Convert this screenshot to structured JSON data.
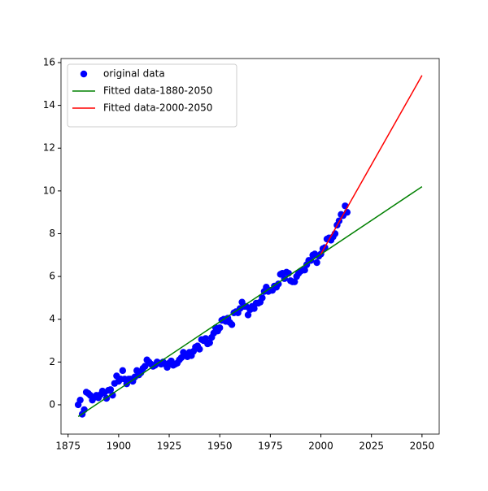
{
  "chart_data": {
    "type": "scatter",
    "legend": "upper left",
    "grid": false,
    "xlim": [
      1871.5,
      2058.5
    ],
    "ylim": [
      -1.37,
      16.19
    ],
    "xticks": [
      1875,
      1900,
      1925,
      1950,
      1975,
      2000,
      2025,
      2050
    ],
    "yticks": [
      0,
      2,
      4,
      6,
      8,
      10,
      12,
      14,
      16
    ],
    "series": [
      {
        "name": "original data",
        "type": "scatter",
        "color": "#0000ff",
        "x": [
          1880,
          1881,
          1882,
          1883,
          1884,
          1885,
          1886,
          1887,
          1888,
          1889,
          1890,
          1891,
          1892,
          1893,
          1894,
          1895,
          1896,
          1897,
          1898,
          1899,
          1900,
          1901,
          1902,
          1903,
          1904,
          1905,
          1906,
          1907,
          1908,
          1909,
          1910,
          1911,
          1912,
          1913,
          1914,
          1915,
          1916,
          1917,
          1918,
          1919,
          1920,
          1921,
          1922,
          1923,
          1924,
          1925,
          1926,
          1927,
          1928,
          1929,
          1930,
          1931,
          1932,
          1933,
          1934,
          1935,
          1936,
          1937,
          1938,
          1939,
          1940,
          1941,
          1942,
          1943,
          1944,
          1945,
          1946,
          1947,
          1948,
          1949,
          1950,
          1951,
          1952,
          1953,
          1954,
          1955,
          1956,
          1957,
          1958,
          1959,
          1960,
          1961,
          1962,
          1963,
          1964,
          1965,
          1966,
          1967,
          1968,
          1969,
          1970,
          1971,
          1972,
          1973,
          1974,
          1975,
          1976,
          1977,
          1978,
          1979,
          1980,
          1981,
          1982,
          1983,
          1984,
          1985,
          1986,
          1987,
          1988,
          1989,
          1990,
          1991,
          1992,
          1993,
          1994,
          1995,
          1996,
          1997,
          1998,
          1999,
          2000,
          2001,
          2002,
          2003,
          2004,
          2005,
          2006,
          2007,
          2008,
          2009,
          2010,
          2011,
          2012,
          2013
        ],
        "values": [
          0.0,
          0.22,
          -0.44,
          -0.23,
          0.59,
          0.53,
          0.44,
          0.22,
          0.35,
          0.44,
          0.33,
          0.47,
          0.64,
          0.57,
          0.3,
          0.68,
          0.71,
          0.45,
          1.0,
          1.35,
          1.1,
          1.2,
          1.6,
          1.2,
          0.98,
          1.2,
          1.2,
          1.1,
          1.3,
          1.6,
          1.4,
          1.5,
          1.7,
          1.8,
          2.1,
          2.0,
          1.9,
          1.8,
          1.85,
          2.0,
          1.95,
          1.9,
          2.0,
          1.9,
          1.75,
          1.95,
          2.05,
          1.85,
          1.9,
          1.95,
          2.1,
          2.2,
          2.45,
          2.3,
          2.25,
          2.45,
          2.3,
          2.5,
          2.7,
          2.75,
          2.6,
          3.05,
          3.0,
          3.1,
          2.85,
          2.9,
          3.15,
          3.35,
          3.6,
          3.45,
          3.6,
          3.95,
          4.0,
          3.9,
          4.05,
          3.85,
          3.75,
          4.3,
          4.35,
          4.3,
          4.5,
          4.8,
          4.6,
          4.6,
          4.2,
          4.45,
          4.6,
          4.5,
          4.75,
          4.75,
          4.8,
          5.0,
          5.3,
          5.5,
          5.3,
          5.35,
          5.35,
          5.55,
          5.5,
          5.65,
          6.1,
          6.15,
          5.9,
          6.2,
          6.15,
          5.8,
          5.75,
          5.75,
          6.0,
          6.15,
          6.25,
          6.3,
          6.3,
          6.55,
          6.75,
          6.75,
          7.0,
          7.05,
          6.65,
          6.95,
          7.05,
          7.3,
          7.35,
          7.75,
          7.8,
          7.7,
          7.85,
          8.0,
          8.4,
          8.6,
          8.9,
          8.85,
          9.3,
          9.0
        ]
      },
      {
        "name": "Fitted data-1880-2050",
        "type": "line",
        "color": "#008000",
        "x": [
          1880,
          2050
        ],
        "values": [
          -0.55,
          10.2
        ]
      },
      {
        "name": "Fitted data-2000-2050",
        "type": "line",
        "color": "#ff0000",
        "x": [
          2000,
          2050
        ],
        "values": [
          7.05,
          15.4
        ]
      }
    ]
  }
}
